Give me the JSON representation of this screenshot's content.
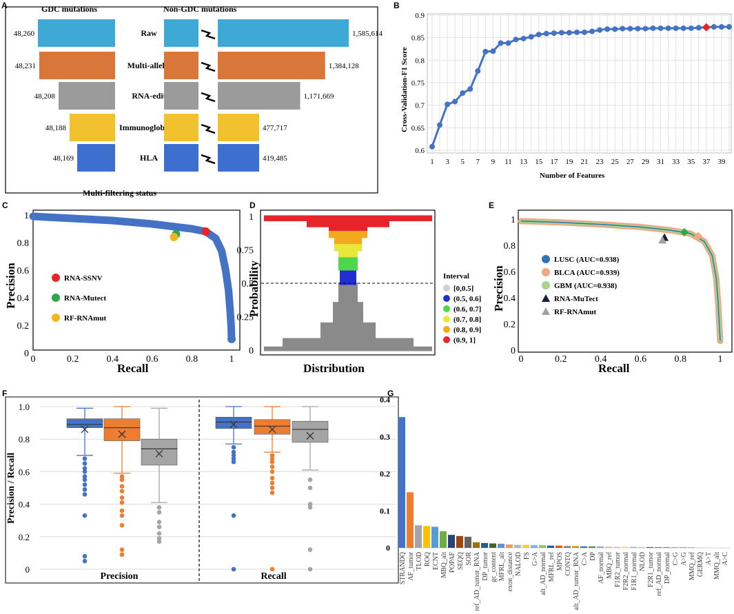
{
  "panels": {
    "A": {
      "label": "A",
      "left_header": "GDC mutations",
      "right_header": "Non-GDC mutations",
      "footer": "Multi-filtering status",
      "rows": [
        {
          "stage": "Raw",
          "gdc": 48260,
          "gdc_label": "48,260",
          "non_gdc": 1585614,
          "non_gdc_label": "1,585,614",
          "color": "#3fa9d6"
        },
        {
          "stage": "Multi-allelic",
          "gdc": 48231,
          "gdc_label": "48,231",
          "non_gdc": 1384128,
          "non_gdc_label": "1,384,128",
          "color": "#d9773a"
        },
        {
          "stage": "RNA-edit",
          "gdc": 48208,
          "gdc_label": "48,208",
          "non_gdc": 1171669,
          "non_gdc_label": "1,171,669",
          "color": "#9b9b9b"
        },
        {
          "stage": "Immunoglobulin",
          "gdc": 48188,
          "gdc_label": "48,188",
          "non_gdc": 477717,
          "non_gdc_label": "477,717",
          "color": "#f2c12e"
        },
        {
          "stage": "HLA",
          "gdc": 48169,
          "gdc_label": "48,169",
          "non_gdc": 419485,
          "non_gdc_label": "419,485",
          "color": "#3d6fd0"
        }
      ]
    },
    "B": {
      "label": "B",
      "chart_data": {
        "type": "line",
        "xlabel": "Number of Features",
        "ylabel": "Cross-Validation-F1 Score",
        "ylim": [
          0.6,
          0.9
        ],
        "yticks": [
          "0.6",
          "0.65",
          "0.7",
          "0.75",
          "0.8",
          "0.85",
          "0.9"
        ],
        "xticks": [
          "1",
          "3",
          "5",
          "7",
          "9",
          "11",
          "13",
          "15",
          "17",
          "19",
          "21",
          "23",
          "25",
          "27",
          "29",
          "31",
          "33",
          "35",
          "37",
          "39"
        ],
        "x": [
          1,
          2,
          3,
          4,
          5,
          6,
          7,
          8,
          9,
          10,
          11,
          12,
          13,
          14,
          15,
          16,
          17,
          18,
          19,
          20,
          21,
          22,
          23,
          24,
          25,
          26,
          27,
          28,
          29,
          30,
          31,
          32,
          33,
          34,
          35,
          36,
          37,
          38,
          39,
          40
        ],
        "values": [
          0.608,
          0.656,
          0.702,
          0.708,
          0.727,
          0.736,
          0.776,
          0.819,
          0.82,
          0.838,
          0.838,
          0.846,
          0.848,
          0.852,
          0.857,
          0.859,
          0.86,
          0.861,
          0.861,
          0.862,
          0.862,
          0.864,
          0.867,
          0.869,
          0.869,
          0.87,
          0.87,
          0.87,
          0.87,
          0.871,
          0.871,
          0.871,
          0.871,
          0.871,
          0.871,
          0.872,
          0.873,
          0.874,
          0.874,
          0.874
        ],
        "highlight_x": 37,
        "line_color": "#4472c4",
        "highlight_color": "#e8232a"
      }
    },
    "C": {
      "label": "C",
      "chart_data": {
        "type": "line",
        "xlabel": "Recall",
        "ylabel": "Precision",
        "xticks": [
          "0",
          "0.2",
          "0.4",
          "0.6",
          "0.8",
          "1"
        ],
        "yticks": [
          "0",
          "0.2",
          "0.4",
          "0.6",
          "0.8",
          "1"
        ],
        "curve": [
          [
            0,
            0.99
          ],
          [
            0.2,
            0.975
          ],
          [
            0.4,
            0.96
          ],
          [
            0.6,
            0.935
          ],
          [
            0.8,
            0.9
          ],
          [
            0.87,
            0.88
          ],
          [
            0.92,
            0.83
          ],
          [
            0.95,
            0.74
          ],
          [
            0.97,
            0.6
          ],
          [
            0.985,
            0.45
          ],
          [
            0.993,
            0.3
          ],
          [
            0.998,
            0.19
          ],
          [
            1.0,
            0.1
          ]
        ],
        "points": [
          {
            "name": "RNA-SSNV",
            "x": 0.87,
            "y": 0.88,
            "color": "#e8232a"
          },
          {
            "name": "RNA-Mutect",
            "x": 0.72,
            "y": 0.86,
            "color": "#2ca84a"
          },
          {
            "name": "RF-RNAmut",
            "x": 0.71,
            "y": 0.84,
            "color": "#f2b51d"
          }
        ],
        "curve_color": "#4472c4"
      }
    },
    "D": {
      "label": "D",
      "chart_data": {
        "type": "bar",
        "xlabel": "Distribution",
        "ylabel": "Probability",
        "yticks": [
          "0",
          "0.25",
          "0.5",
          "0.75",
          "1"
        ],
        "threshold": 0.5,
        "legend_title": "Interval",
        "intervals": [
          {
            "label": "[0,0.5]",
            "color": "#d0d0d0"
          },
          {
            "label": "(0.5, 0.6]",
            "color": "#1f2fd1"
          },
          {
            "label": "(0.6, 0.7]",
            "color": "#4fd64a"
          },
          {
            "label": "(0.7, 0.8]",
            "color": "#e8e83a"
          },
          {
            "label": "(0.8, 0.9]",
            "color": "#f2a91d"
          },
          {
            "label": "(0.9, 1]",
            "color": "#e8232a"
          }
        ]
      }
    },
    "E": {
      "label": "E",
      "chart_data": {
        "type": "line",
        "xlabel": "Recall",
        "ylabel": "Precision",
        "xticks": [
          "0",
          "0.2",
          "0.4",
          "0.6",
          "0.8",
          "1"
        ],
        "yticks": [
          "0",
          "0.2",
          "0.4",
          "0.6",
          "0.8",
          "1"
        ],
        "series": [
          {
            "name": "LUSC (AUC=0.938)",
            "color": "#2e75b6"
          },
          {
            "name": "BLCA (AUC=0.939)",
            "color": "#f4a582"
          },
          {
            "name": "GBM (AUC=0.938)",
            "color": "#a6d48a"
          }
        ],
        "curve": [
          [
            0,
            0.985
          ],
          [
            0.2,
            0.975
          ],
          [
            0.4,
            0.96
          ],
          [
            0.6,
            0.94
          ],
          [
            0.75,
            0.915
          ],
          [
            0.85,
            0.89
          ],
          [
            0.92,
            0.83
          ],
          [
            0.96,
            0.72
          ],
          [
            0.98,
            0.55
          ],
          [
            0.99,
            0.35
          ],
          [
            1.0,
            0.07
          ]
        ],
        "markers": [
          {
            "name": "RNA-MuTect",
            "shape": "triangle",
            "x": 0.72,
            "y": 0.86,
            "color": "#1a1a3a"
          },
          {
            "name": "RF-RNAmut",
            "shape": "triangle",
            "x": 0.71,
            "y": 0.84,
            "color": "#a0a0a0"
          },
          {
            "name": "LUSC-point",
            "shape": "diamond",
            "x": 0.82,
            "y": 0.9,
            "color": "#2ca84a"
          },
          {
            "name": "BLCA-point",
            "shape": "diamond",
            "x": 0.89,
            "y": 0.87,
            "color": "#f4a582"
          }
        ]
      }
    },
    "F": {
      "label": "F",
      "chart_data": {
        "type": "box",
        "ylabel": "Precision / Recall",
        "yticks": [
          "0",
          "0.2",
          "0.4",
          "0.6",
          "0.8",
          "1.0"
        ],
        "ylim": [
          0,
          1
        ],
        "groups": [
          {
            "name": "Precision",
            "boxes": [
              {
                "color": "#4472c4",
                "q1": 0.87,
                "median": 0.89,
                "q3": 0.925,
                "lo": 0.7,
                "hi": 0.99,
                "mean": 0.86,
                "outliers": [
                  0.68,
                  0.65,
                  0.62,
                  0.6,
                  0.57,
                  0.55,
                  0.52,
                  0.49,
                  0.46,
                  0.33,
                  0.08,
                  0.05
                ]
              },
              {
                "color": "#ed7d31",
                "q1": 0.79,
                "median": 0.87,
                "q3": 0.925,
                "lo": 0.59,
                "hi": 1.0,
                "mean": 0.83,
                "outliers": [
                  0.57,
                  0.55,
                  0.51,
                  0.48,
                  0.44,
                  0.41,
                  0.36,
                  0.33,
                  0.27,
                  0.12,
                  0.09
                ]
              },
              {
                "color": "#a5a5a5",
                "q1": 0.64,
                "median": 0.74,
                "q3": 0.8,
                "lo": 0.41,
                "hi": 0.99,
                "mean": 0.71,
                "outliers": [
                  0.38,
                  0.35,
                  0.29,
                  0.26,
                  0.22,
                  0.19,
                  0.17
                ]
              }
            ]
          },
          {
            "name": "Recall",
            "boxes": [
              {
                "color": "#4472c4",
                "q1": 0.865,
                "median": 0.905,
                "q3": 0.935,
                "lo": 0.77,
                "hi": 1.0,
                "mean": 0.89,
                "outliers": [
                  0.75,
                  0.72,
                  0.7,
                  0.68,
                  0.66,
                  0.33,
                  0.0
                ]
              },
              {
                "color": "#ed7d31",
                "q1": 0.83,
                "median": 0.88,
                "q3": 0.92,
                "lo": 0.72,
                "hi": 1.0,
                "mean": 0.86,
                "outliers": [
                  0.7,
                  0.68,
                  0.66,
                  0.63,
                  0.6,
                  0.56,
                  0.53,
                  0.5,
                  0.47,
                  0.0
                ]
              },
              {
                "color": "#a5a5a5",
                "q1": 0.78,
                "median": 0.86,
                "q3": 0.91,
                "lo": 0.61,
                "hi": 1.0,
                "mean": 0.82,
                "outliers": [
                  0.55,
                  0.5,
                  0.4,
                  0.38,
                  0.12,
                  0.0
                ]
              }
            ]
          }
        ]
      }
    },
    "G": {
      "label": "G",
      "chart_data": {
        "type": "bar",
        "ylim": [
          0,
          0.4
        ],
        "yticks": [
          "0",
          "0.1",
          "0.2",
          "0.3",
          "0.4"
        ],
        "categories": [
          "STRANDQ",
          "AF_tumor",
          "TLOD",
          "ROQ",
          "ECNT",
          "MBQ_alt",
          "POPAF",
          "SEQQ",
          "SOR",
          "ref_AD_tumor_RNA",
          "DP_tumor",
          "gc_content",
          "MFRL_alt",
          "exon_distance",
          "NALOD",
          "FS",
          "G>A",
          "alt_AD_normal",
          "MFRL_ref",
          "MPOS",
          "CONTQ",
          "alt_AD_tumor_RNA",
          "C>A",
          "DP",
          "AF_normal",
          "MBQ_ref",
          "F1R2_tumor",
          "F2R2_normal",
          "F1R1_normal",
          "NLOD",
          "F2R1_tumor",
          "ref_AD_normal",
          "DP_normal",
          "C>G",
          "A>G",
          "MMQ_ref",
          "GERMQ",
          "A>T",
          "MMQ_alt",
          "A>C"
        ],
        "values": [
          0.353,
          0.15,
          0.061,
          0.059,
          0.057,
          0.045,
          0.035,
          0.032,
          0.03,
          0.015,
          0.013,
          0.012,
          0.011,
          0.009,
          0.008,
          0.008,
          0.007,
          0.007,
          0.006,
          0.006,
          0.005,
          0.005,
          0.004,
          0.004,
          0.004,
          0.003,
          0.003,
          0.003,
          0.003,
          0.002,
          0.002,
          0.002,
          0.002,
          0.0015,
          0.0012,
          0.001,
          0.001,
          0.0008,
          0.0006,
          0.0005
        ],
        "colors": [
          "#4472c4",
          "#ed7d31",
          "#a5a5a5",
          "#ffc000",
          "#5b9bd5",
          "#70ad47",
          "#264478",
          "#9e480e",
          "#636363",
          "#997300",
          "#255e91",
          "#43682b",
          "#698ed0",
          "#f1975a",
          "#b7b7b7",
          "#ffcd33",
          "#7cafdd",
          "#8cc168",
          "#335aa1",
          "#d26012",
          "#848484",
          "#cc9a00",
          "#3275b3",
          "#5a8a3a",
          "#8faadc",
          "#f4b183",
          "#c9c9c9",
          "#ffd966",
          "#9dc3e6",
          "#a9d18e",
          "#2f5597",
          "#c55a11",
          "#7f7f7f",
          "#bf9000",
          "#2e75b6",
          "#548235",
          "#b4c7e7",
          "#f8cbad",
          "#dbdbdb",
          "#ffe699"
        ]
      }
    }
  }
}
